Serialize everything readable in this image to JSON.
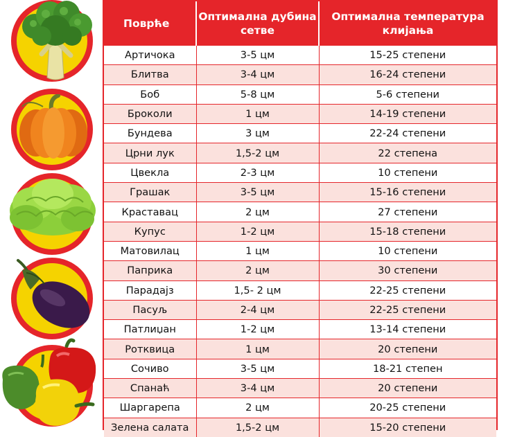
{
  "table": {
    "headers": [
      "Поврће",
      "Оптимална дубина сетве",
      "Оптимална температура клијања"
    ],
    "rows": [
      [
        "Артичока",
        "3-5 цм",
        "15-25 степени"
      ],
      [
        "Блитва",
        "3-4 цм",
        "16-24 степени"
      ],
      [
        "Боб",
        "5-8 цм",
        "5-6 степени"
      ],
      [
        "Броколи",
        "1 цм",
        "14-19 степени"
      ],
      [
        "Бундева",
        "3 цм",
        "22-24 степени"
      ],
      [
        "Црни лук",
        "1,5-2 цм",
        "22 степена"
      ],
      [
        "Цвекла",
        "2-3 цм",
        "10 степени"
      ],
      [
        "Грашак",
        "3-5 цм",
        "15-16 степени"
      ],
      [
        "Краставац",
        "2 цм",
        "27 степени"
      ],
      [
        "Купус",
        "1-2 цм",
        "15-18 степени"
      ],
      [
        "Матовилац",
        "1 цм",
        "10 степени"
      ],
      [
        "Паприка",
        "2 цм",
        "30 степени"
      ],
      [
        "Парадајз",
        "1,5- 2 цм",
        "22-25 степени"
      ],
      [
        "Пасуљ",
        "2-4 цм",
        "22-25 степени"
      ],
      [
        "Патлиџан",
        "1-2 цм",
        "13-14 степени"
      ],
      [
        "Ротквица",
        "1 цм",
        "20 степени"
      ],
      [
        "Сочиво",
        "3-5 цм",
        "18-21 степен"
      ],
      [
        "Спанаћ",
        "3-4 цм",
        "20 степени"
      ],
      [
        "Шаргарепа",
        "2 цм",
        "20-25 степени"
      ],
      [
        "Зелена салата",
        "1,5-2 цм",
        "15-20 степени"
      ]
    ]
  },
  "images": [
    "broccoli",
    "pumpkin",
    "lettuce",
    "eggplant",
    "bell-peppers"
  ],
  "colors": {
    "accent": "#e5252a",
    "stripe": "#fbe1dd",
    "badge": "#f5d300"
  }
}
